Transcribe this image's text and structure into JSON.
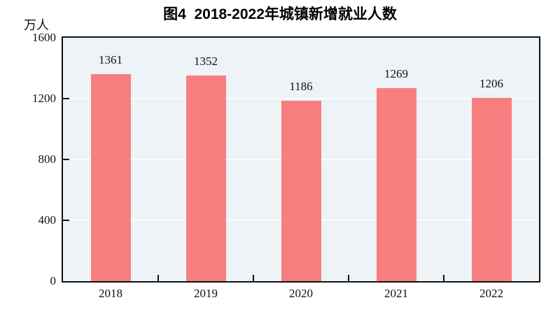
{
  "title": "图4  2018-2022年城镇新增就业人数",
  "unit_label": "万人",
  "colors": {
    "bar": "#f87f7f",
    "plot_background": "#edf3f6",
    "gridline": "#fafdfd",
    "axis": "#111111",
    "text": "#111111"
  },
  "chart_data": {
    "type": "bar",
    "title": "图4  2018-2022年城镇新增就业人数",
    "categories": [
      "2018",
      "2019",
      "2020",
      "2021",
      "2022"
    ],
    "values": [
      1361,
      1352,
      1186,
      1269,
      1206
    ],
    "xlabel": "",
    "ylabel": "万人",
    "ylim": [
      0,
      1600
    ],
    "yticks": [
      0,
      400,
      800,
      1200,
      1600
    ],
    "gridlines": [
      400,
      800,
      1200
    ],
    "grid": "horizontal-only",
    "legend_position": "none",
    "bar_value_labels": true
  }
}
